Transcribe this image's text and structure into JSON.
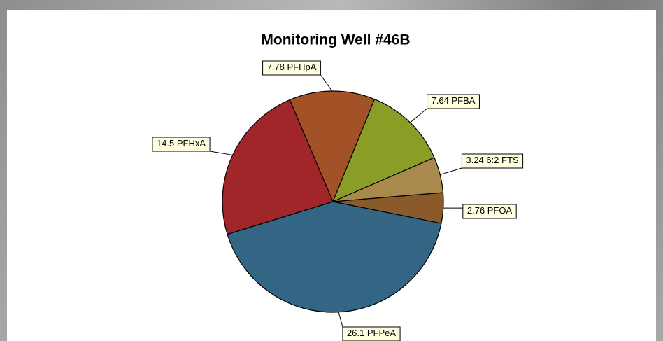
{
  "chart_data": {
    "type": "pie",
    "title": "Monitoring Well #46B",
    "categories": [
      "PFHpA",
      "PFBA",
      "6:2 FTS",
      "PFOA",
      "PFPeA",
      "PFHxA"
    ],
    "values": [
      7.78,
      7.64,
      3.24,
      2.76,
      26.1,
      14.5
    ],
    "colors": [
      "#a35228",
      "#8a9e27",
      "#a98a4c",
      "#8a5a2a",
      "#336685",
      "#a0262a"
    ]
  }
}
